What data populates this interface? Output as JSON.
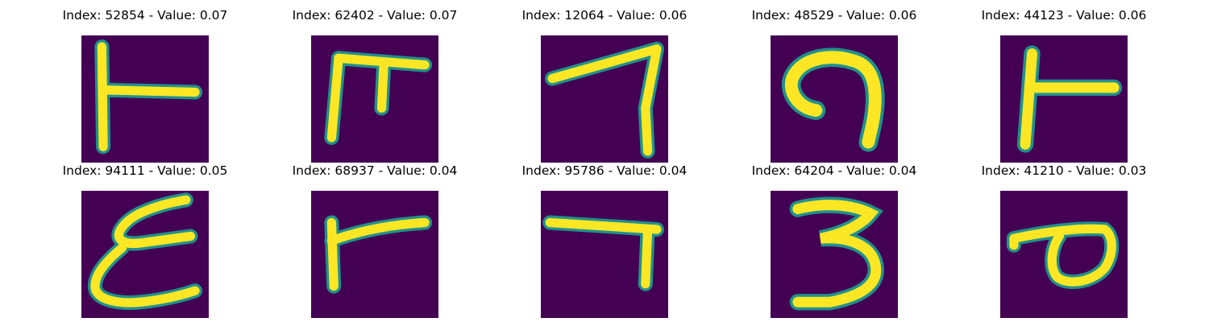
{
  "figure": {
    "colormap": "viridis",
    "background_color": "#440154",
    "stroke_color": "#fde725",
    "edge_color": "#21918c",
    "panels": [
      {
        "title": "Index: 52854 - Value: 0.07",
        "glyph": "sideways-T (vertical bar with rightward stroke)"
      },
      {
        "title": "Index: 62402 - Value: 0.07",
        "glyph": "pi-like shape"
      },
      {
        "title": "Index: 12064 - Value: 0.06",
        "glyph": "seven-like shape"
      },
      {
        "title": "Index: 48529 - Value: 0.06",
        "glyph": "hook / rotated G"
      },
      {
        "title": "Index: 44123 - Value: 0.06",
        "glyph": "sideways-T (vertical bar with rightward stroke)"
      },
      {
        "title": "Index: 94111 - Value: 0.05",
        "glyph": "E-like shape"
      },
      {
        "title": "Index: 68937 - Value: 0.04",
        "glyph": "gamma-like shape"
      },
      {
        "title": "Index: 95786 - Value: 0.04",
        "glyph": "seven-like shape"
      },
      {
        "title": "Index: 64204 - Value: 0.04",
        "glyph": "three"
      },
      {
        "title": "Index: 41210 - Value: 0.03",
        "glyph": "loop with tail"
      }
    ]
  }
}
